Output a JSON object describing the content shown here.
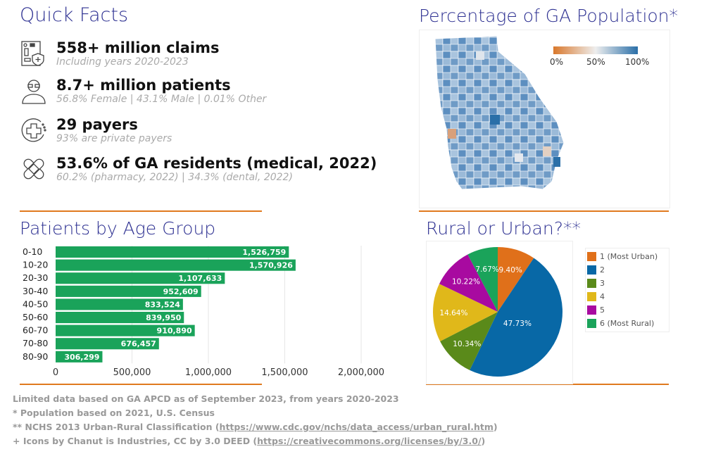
{
  "quick_facts": {
    "title": "Quick Facts",
    "items": [
      {
        "icon": "claim-document-icon",
        "main": "558+ million claims",
        "sub": "Including years 2020-2023"
      },
      {
        "icon": "elderly-patient-icon",
        "main": "8.7+ million patients",
        "sub": "56.8% Female | 43.1% Male | 0.01% Other"
      },
      {
        "icon": "medical-cross-cycle-icon",
        "main": "29 payers",
        "sub": "93% are private payers"
      },
      {
        "icon": "bandage-icon",
        "main": "53.6% of GA residents (medical, 2022)",
        "sub": "60.2% (pharmacy, 2022) | 34.3% (dental, 2022)"
      }
    ]
  },
  "map": {
    "title": "Percentage of GA Population*",
    "legend_labels": [
      "0%",
      "50%",
      "100%"
    ],
    "colors": {
      "low": "#d9782c",
      "mid": "#e8e8e8",
      "high": "#2a6fa8"
    }
  },
  "chart_data": [
    {
      "type": "bar",
      "orientation": "horizontal",
      "title": "Patients by Age Group",
      "categories": [
        "0-10",
        "10-20",
        "20-30",
        "30-40",
        "40-50",
        "50-60",
        "60-70",
        "70-80",
        "80-90"
      ],
      "values": [
        1526759,
        1570926,
        1107633,
        952609,
        833524,
        839950,
        910890,
        676457,
        306299
      ],
      "value_labels": [
        "1,526,759",
        "1,570,926",
        "1,107,633",
        "952,609",
        "833,524",
        "839,950",
        "910,890",
        "676,457",
        "306,299"
      ],
      "xlim": [
        0,
        2000000
      ],
      "xticks": [
        "0",
        "500,000",
        "1,000,000",
        "1,500,000",
        "2,000,000"
      ],
      "grid": true,
      "color": "#1aa35a"
    },
    {
      "type": "pie",
      "title": "Rural or Urban?**",
      "labels": [
        "1 (Most Urban)",
        "2",
        "3",
        "4",
        "5",
        "6 (Most Rural)"
      ],
      "values": [
        9.4,
        47.73,
        10.34,
        14.64,
        10.22,
        7.67
      ],
      "value_labels": [
        "9.40%",
        "47.73%",
        "10.34%",
        "14.64%",
        "10.22%",
        "7.67%"
      ],
      "colors": [
        "#e0701a",
        "#0868a6",
        "#5a8a1a",
        "#e0b81a",
        "#a80aa0",
        "#1aa35a"
      ],
      "legend": "right"
    }
  ],
  "footnotes": {
    "line1": "Limited data based on GA APCD as of September 2023, from years 2020-2023",
    "line2": "* Population based on 2021, U.S. Census",
    "line3_prefix": "** NCHS 2013 Urban-Rural Classification (",
    "line3_link": "https://www.cdc.gov/nchs/data_access/urban_rural.htm",
    "line4_prefix": "+ Icons by Chanut is Industries, CC by 3.0 DEED (",
    "line4_link": "https://creativecommons.org/licenses/by/3.0/",
    "close": ")"
  }
}
